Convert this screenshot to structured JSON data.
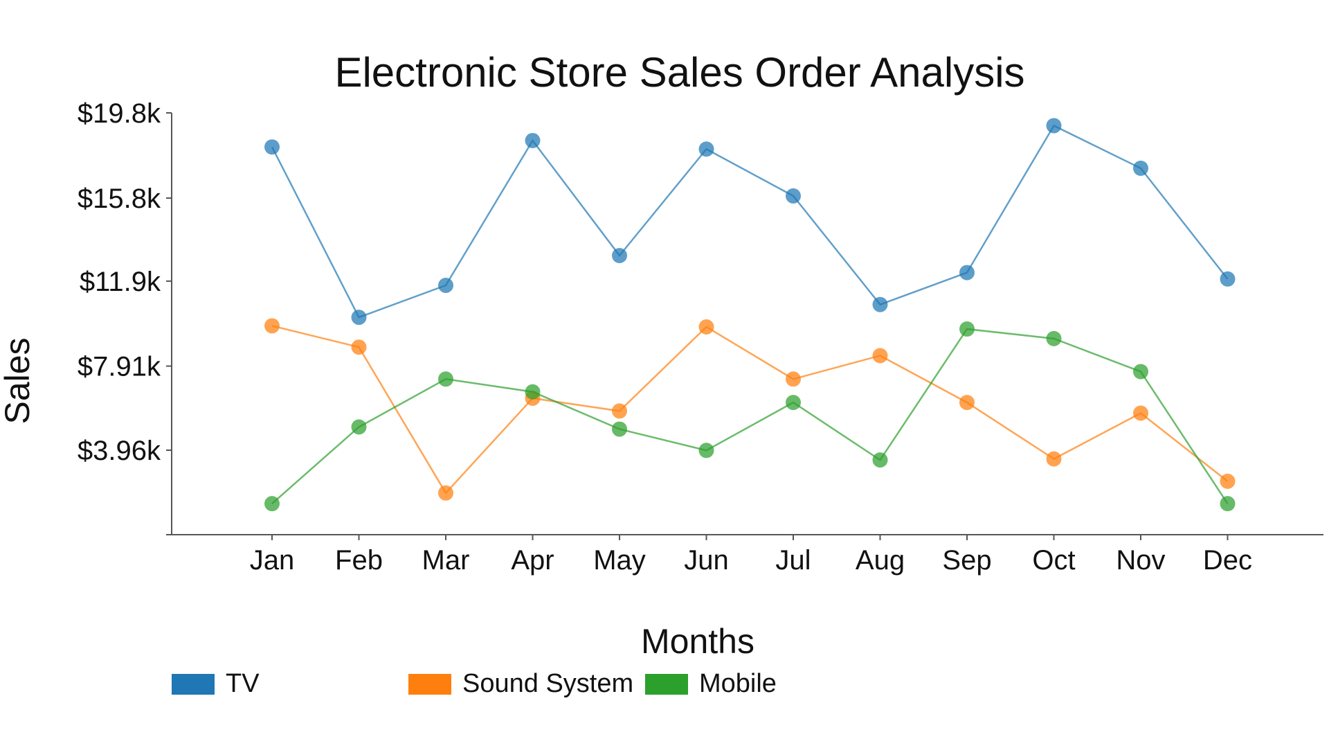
{
  "chart_data": {
    "type": "line",
    "title": "Electronic Store Sales Order Analysis",
    "xlabel": "Months",
    "ylabel": "Sales",
    "categories": [
      "Jan",
      "Feb",
      "Mar",
      "Apr",
      "May",
      "Jun",
      "Jul",
      "Aug",
      "Sep",
      "Oct",
      "Nov",
      "Dec"
    ],
    "y_ticks": [
      {
        "value": 3960,
        "label": "$3.96k"
      },
      {
        "value": 7910,
        "label": "$7.91k"
      },
      {
        "value": 11900,
        "label": "$11.9k"
      },
      {
        "value": 15800,
        "label": "$15.8k"
      },
      {
        "value": 19800,
        "label": "$19.8k"
      }
    ],
    "ylim": [
      0,
      19800
    ],
    "grid": false,
    "legend_position": "bottom-left",
    "series": [
      {
        "name": "TV",
        "color": "#1f77b4",
        "values": [
          18200,
          10200,
          11700,
          18500,
          13100,
          18100,
          15900,
          10800,
          12300,
          19200,
          17200,
          12000
        ]
      },
      {
        "name": "Sound System",
        "color": "#ff7f0e",
        "values": [
          9800,
          8800,
          1950,
          6400,
          5800,
          9750,
          7300,
          8400,
          6200,
          3550,
          5700,
          2500
        ]
      },
      {
        "name": "Mobile",
        "color": "#2ca02c",
        "values": [
          1450,
          5050,
          7300,
          6700,
          4950,
          3950,
          6200,
          3500,
          9650,
          9200,
          7650,
          1450
        ]
      }
    ]
  }
}
